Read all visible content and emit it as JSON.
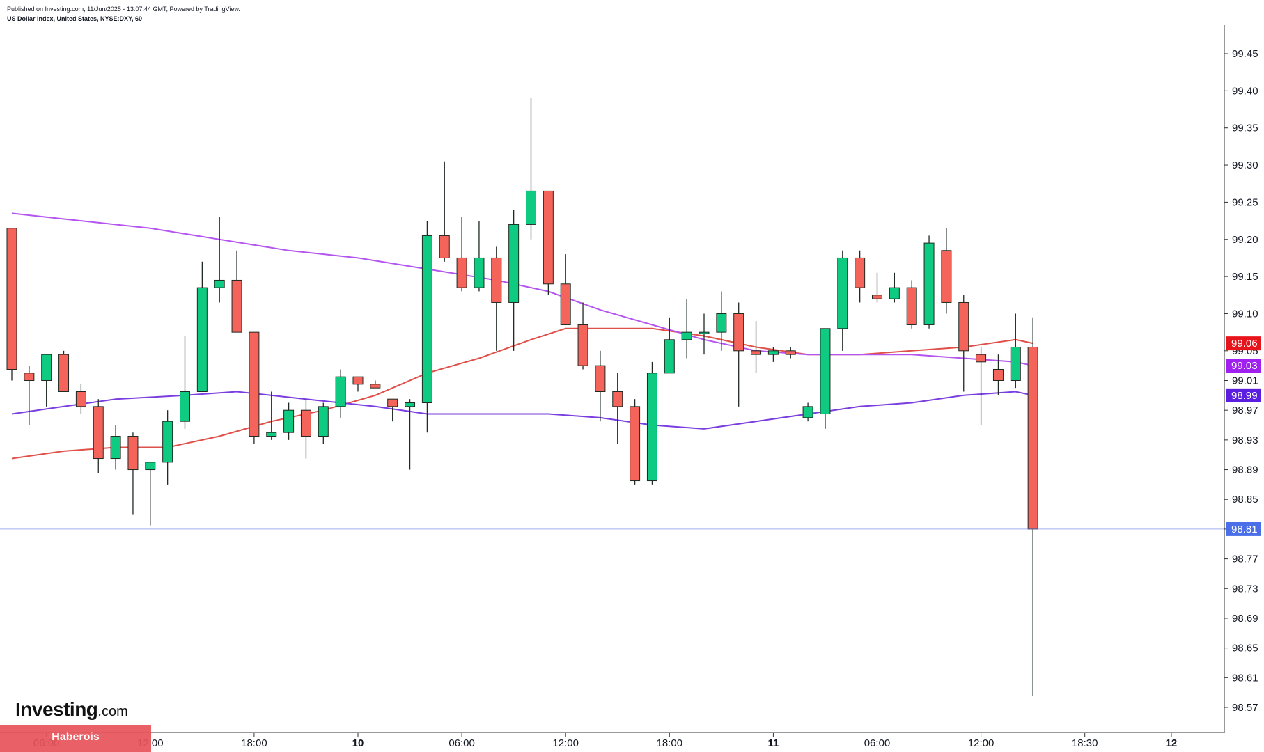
{
  "header": {
    "published": "Published on Investing.com, 11/Jun/2025 - 13:07:44 GMT, Powered by TradingView.",
    "symbol": "US Dollar Index, United States, NYSE:DXY, 60"
  },
  "branding": {
    "logo_main": "Investing",
    "logo_suffix": ".com",
    "watermark": "Haberois"
  },
  "colors": {
    "up": "#0ecb81",
    "down": "#f5645a",
    "ma_fast": "#e0504a",
    "ma_mid": "#b455f0",
    "ma_slow": "#7a3ee0",
    "last_price_line": "#6a7ce8",
    "badge_red": "#e8141b",
    "badge_mid": "#a020f0",
    "badge_slow": "#5b1ee0",
    "badge_last": "#4a6fe8"
  },
  "chart_data": {
    "type": "candlestick",
    "yaxis": {
      "ticks": [
        "99.45",
        "99.40",
        "99.35",
        "99.30",
        "99.25",
        "99.20",
        "99.15",
        "99.10",
        "99.05",
        "99.01",
        "98.97",
        "98.93",
        "98.89",
        "98.85",
        "98.81",
        "98.77",
        "98.73",
        "98.69",
        "98.65",
        "98.61",
        "98.57"
      ]
    },
    "xaxis": {
      "labels": [
        {
          "text": "06:00",
          "bold": false,
          "index": 2
        },
        {
          "text": "12:00",
          "bold": false,
          "index": 8
        },
        {
          "text": "18:00",
          "bold": false,
          "index": 14
        },
        {
          "text": "10",
          "bold": true,
          "index": 20
        },
        {
          "text": "06:00",
          "bold": false,
          "index": 26
        },
        {
          "text": "12:00",
          "bold": false,
          "index": 32
        },
        {
          "text": "18:00",
          "bold": false,
          "index": 38
        },
        {
          "text": "11",
          "bold": true,
          "index": 44
        },
        {
          "text": "06:00",
          "bold": false,
          "index": 50
        },
        {
          "text": "12:00",
          "bold": false,
          "index": 56
        },
        {
          "text": "18:30",
          "bold": false,
          "index": 62
        },
        {
          "text": "12",
          "bold": true,
          "index": 67
        }
      ]
    },
    "candles": [
      [
        99.215,
        99.215,
        99.01,
        99.025
      ],
      [
        99.02,
        99.03,
        98.95,
        99.01
      ],
      [
        99.01,
        99.045,
        98.975,
        99.045
      ],
      [
        99.045,
        99.05,
        98.995,
        98.995
      ],
      [
        98.995,
        99.005,
        98.965,
        98.975
      ],
      [
        98.975,
        98.985,
        98.885,
        98.905
      ],
      [
        98.905,
        98.95,
        98.89,
        98.935
      ],
      [
        98.935,
        98.94,
        98.83,
        98.89
      ],
      [
        98.89,
        98.9,
        98.815,
        98.9
      ],
      [
        98.9,
        98.97,
        98.87,
        98.955
      ],
      [
        98.955,
        99.07,
        98.945,
        98.995
      ],
      [
        98.995,
        99.17,
        98.995,
        99.135
      ],
      [
        99.135,
        99.23,
        99.115,
        99.145
      ],
      [
        99.145,
        99.185,
        99.075,
        99.075
      ],
      [
        99.075,
        99.075,
        98.925,
        98.935
      ],
      [
        98.935,
        98.995,
        98.93,
        98.94
      ],
      [
        98.94,
        98.98,
        98.93,
        98.97
      ],
      [
        98.97,
        98.985,
        98.905,
        98.935
      ],
      [
        98.935,
        98.98,
        98.925,
        98.975
      ],
      [
        98.975,
        99.025,
        98.96,
        99.015
      ],
      [
        99.015,
        99.015,
        98.995,
        99.005
      ],
      [
        99.005,
        99.01,
        99.0,
        99.0
      ],
      [
        98.985,
        98.985,
        98.955,
        98.975
      ],
      [
        98.975,
        98.985,
        98.89,
        98.98
      ],
      [
        98.98,
        99.225,
        98.94,
        99.205
      ],
      [
        99.205,
        99.305,
        99.17,
        99.175
      ],
      [
        99.175,
        99.23,
        99.13,
        99.135
      ],
      [
        99.135,
        99.225,
        99.13,
        99.175
      ],
      [
        99.175,
        99.19,
        99.05,
        99.115
      ],
      [
        99.115,
        99.24,
        99.05,
        99.22
      ],
      [
        99.22,
        99.39,
        99.2,
        99.265
      ],
      [
        99.265,
        99.265,
        99.125,
        99.14
      ],
      [
        99.14,
        99.18,
        99.085,
        99.085
      ],
      [
        99.085,
        99.115,
        99.025,
        99.03
      ],
      [
        99.03,
        99.05,
        98.955,
        98.995
      ],
      [
        98.995,
        99.02,
        98.925,
        98.975
      ],
      [
        98.975,
        98.985,
        98.87,
        98.875
      ],
      [
        98.875,
        99.035,
        98.87,
        99.02
      ],
      [
        99.02,
        99.095,
        99.02,
        99.065
      ],
      [
        99.065,
        99.12,
        99.04,
        99.075
      ],
      [
        99.075,
        99.1,
        99.045,
        99.075
      ],
      [
        99.075,
        99.13,
        99.05,
        99.1
      ],
      [
        99.1,
        99.115,
        98.975,
        99.05
      ],
      [
        99.05,
        99.09,
        99.02,
        99.045
      ],
      [
        99.045,
        99.055,
        99.035,
        99.05
      ],
      [
        99.05,
        99.055,
        99.04,
        99.045
      ],
      [
        98.96,
        98.98,
        98.955,
        98.975
      ],
      [
        98.965,
        99.08,
        98.945,
        99.08
      ],
      [
        99.08,
        99.185,
        99.05,
        99.175
      ],
      [
        99.175,
        99.185,
        99.115,
        99.135
      ],
      [
        99.125,
        99.155,
        99.115,
        99.12
      ],
      [
        99.12,
        99.155,
        99.115,
        99.135
      ],
      [
        99.135,
        99.145,
        99.08,
        99.085
      ],
      [
        99.085,
        99.205,
        99.08,
        99.195
      ],
      [
        99.185,
        99.215,
        99.1,
        99.115
      ],
      [
        99.115,
        99.125,
        98.995,
        99.05
      ],
      [
        99.045,
        99.055,
        98.95,
        99.035
      ],
      [
        99.025,
        99.045,
        98.99,
        99.01
      ],
      [
        99.01,
        99.1,
        99.0,
        99.055
      ],
      [
        99.055,
        99.095,
        98.585,
        98.81
      ]
    ],
    "moving_averages": [
      {
        "color_key": "ma_fast",
        "points": [
          [
            0,
            98.905
          ],
          [
            3,
            98.915
          ],
          [
            6,
            98.92
          ],
          [
            9,
            98.92
          ],
          [
            12,
            98.935
          ],
          [
            15,
            98.955
          ],
          [
            18,
            98.97
          ],
          [
            21,
            98.99
          ],
          [
            24,
            99.02
          ],
          [
            27,
            99.04
          ],
          [
            30,
            99.065
          ],
          [
            32,
            99.08
          ],
          [
            34,
            99.08
          ],
          [
            37,
            99.08
          ],
          [
            40,
            99.07
          ],
          [
            43,
            99.055
          ],
          [
            46,
            99.045
          ],
          [
            49,
            99.045
          ],
          [
            52,
            99.05
          ],
          [
            55,
            99.055
          ],
          [
            58,
            99.065
          ],
          [
            59,
            99.06
          ]
        ]
      },
      {
        "color_key": "ma_mid",
        "points": [
          [
            0,
            99.235
          ],
          [
            4,
            99.225
          ],
          [
            8,
            99.215
          ],
          [
            12,
            99.2
          ],
          [
            16,
            99.185
          ],
          [
            20,
            99.175
          ],
          [
            24,
            99.16
          ],
          [
            28,
            99.145
          ],
          [
            31,
            99.13
          ],
          [
            34,
            99.105
          ],
          [
            37,
            99.085
          ],
          [
            40,
            99.065
          ],
          [
            43,
            99.05
          ],
          [
            46,
            99.045
          ],
          [
            49,
            99.045
          ],
          [
            52,
            99.045
          ],
          [
            55,
            99.04
          ],
          [
            58,
            99.035
          ],
          [
            59,
            99.03
          ]
        ]
      },
      {
        "color_key": "ma_slow",
        "points": [
          [
            0,
            98.965
          ],
          [
            3,
            98.975
          ],
          [
            6,
            98.985
          ],
          [
            10,
            98.99
          ],
          [
            13,
            98.995
          ],
          [
            17,
            98.985
          ],
          [
            21,
            98.975
          ],
          [
            24,
            98.965
          ],
          [
            28,
            98.965
          ],
          [
            31,
            98.965
          ],
          [
            34,
            98.96
          ],
          [
            37,
            98.95
          ],
          [
            40,
            98.945
          ],
          [
            43,
            98.955
          ],
          [
            46,
            98.965
          ],
          [
            49,
            98.975
          ],
          [
            52,
            98.98
          ],
          [
            55,
            98.99
          ],
          [
            58,
            98.995
          ],
          [
            59,
            98.99
          ]
        ]
      }
    ],
    "last_price": 98.81,
    "price_badges": [
      {
        "value": 99.06,
        "label": "99.06",
        "color_key": "badge_red"
      },
      {
        "value": 99.03,
        "label": "99.03",
        "color_key": "badge_mid"
      },
      {
        "value": 98.99,
        "label": "98.99",
        "color_key": "badge_slow"
      },
      {
        "value": 98.81,
        "label": "98.81",
        "color_key": "badge_last"
      }
    ]
  }
}
